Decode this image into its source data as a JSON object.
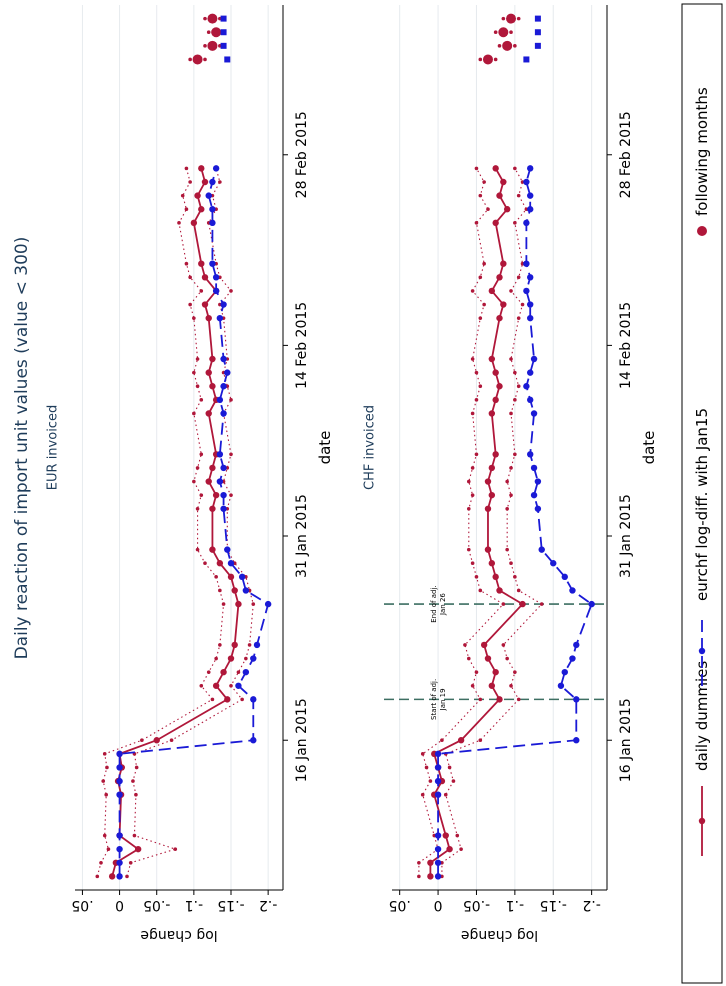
{
  "title": "Daily reaction of import unit values (value < 300)",
  "legend": "bottom",
  "chart_data": [
    {
      "type": "line",
      "subtitle": "EUR invoiced",
      "x_label": "date",
      "y_label": "log change",
      "grid": true,
      "xlim": [
        "2015-01-05",
        "2015-03-11"
      ],
      "xticks": [
        {
          "value": "2015-01-16",
          "label": "16 Jan 2015"
        },
        {
          "value": "2015-01-31",
          "label": "31 Jan 2015"
        },
        {
          "value": "2015-02-14",
          "label": "14 Feb 2015"
        },
        {
          "value": "2015-02-28",
          "label": "28 Feb 2015"
        }
      ],
      "ylim": [
        -0.22,
        0.06
      ],
      "yticks": [
        {
          "value": 0.05,
          "label": ".05"
        },
        0,
        {
          "value": -0.05,
          "label": "-.05"
        },
        {
          "value": -0.1,
          "label": "-.1"
        },
        {
          "value": -0.15,
          "label": "-.15"
        },
        {
          "value": -0.2,
          "label": "-.2"
        }
      ],
      "x": [
        "2015-01-06",
        "2015-01-07",
        "2015-01-08",
        "2015-01-09",
        "2015-01-12",
        "2015-01-13",
        "2015-01-14",
        "2015-01-15",
        "2015-01-16",
        "2015-01-19",
        "2015-01-20",
        "2015-01-21",
        "2015-01-22",
        "2015-01-23",
        "2015-01-26",
        "2015-01-27",
        "2015-01-28",
        "2015-01-29",
        "2015-01-30",
        "2015-02-02",
        "2015-02-03",
        "2015-02-04",
        "2015-02-05",
        "2015-02-06",
        "2015-02-09",
        "2015-02-10",
        "2015-02-11",
        "2015-02-12",
        "2015-02-13",
        "2015-02-16",
        "2015-02-17",
        "2015-02-18",
        "2015-02-19",
        "2015-02-20",
        "2015-02-23",
        "2015-02-24",
        "2015-02-25",
        "2015-02-26",
        "2015-02-27"
      ],
      "series": [
        {
          "name": "daily dummies",
          "color": "#b0173a",
          "style": "solid",
          "marker": "circle",
          "values": [
            0.01,
            0.005,
            -0.025,
            0.0,
            -0.002,
            0.002,
            -0.003,
            0.0,
            -0.05,
            -0.145,
            -0.13,
            -0.14,
            -0.15,
            -0.155,
            -0.16,
            -0.155,
            -0.15,
            -0.135,
            -0.125,
            -0.125,
            -0.13,
            -0.12,
            -0.125,
            -0.13,
            -0.12,
            -0.13,
            -0.125,
            -0.12,
            -0.125,
            -0.12,
            -0.115,
            -0.13,
            -0.115,
            -0.11,
            -0.1,
            -0.11,
            -0.105,
            -0.115,
            -0.11
          ]
        },
        {
          "color": "#b0173a",
          "style": "dotted",
          "marker": "small-circle",
          "values": [
            -0.01,
            -0.015,
            -0.075,
            -0.02,
            -0.022,
            -0.018,
            -0.023,
            -0.02,
            -0.07,
            -0.165,
            -0.15,
            -0.16,
            -0.17,
            -0.175,
            -0.18,
            -0.175,
            -0.17,
            -0.155,
            -0.145,
            -0.145,
            -0.15,
            -0.14,
            -0.145,
            -0.15,
            -0.14,
            -0.15,
            -0.145,
            -0.14,
            -0.145,
            -0.14,
            -0.135,
            -0.15,
            -0.135,
            -0.13,
            -0.12,
            -0.13,
            -0.125,
            -0.135,
            -0.13
          ]
        },
        {
          "color": "#b0173a",
          "style": "dotted",
          "marker": "small-circle",
          "values": [
            0.03,
            0.025,
            0.015,
            0.02,
            0.018,
            0.022,
            0.017,
            0.02,
            -0.03,
            -0.125,
            -0.11,
            -0.12,
            -0.13,
            -0.135,
            -0.14,
            -0.135,
            -0.13,
            -0.115,
            -0.105,
            -0.105,
            -0.11,
            -0.1,
            -0.105,
            -0.11,
            -0.1,
            -0.11,
            -0.105,
            -0.1,
            -0.105,
            -0.1,
            -0.095,
            -0.11,
            -0.095,
            -0.09,
            -0.08,
            -0.09,
            -0.085,
            -0.095,
            -0.09
          ]
        },
        {
          "name": "eurchf log-diff. with Jan15",
          "color": "#1a1ad6",
          "style": "dashed",
          "marker": "circle",
          "values": [
            0,
            0,
            0,
            0,
            0,
            0,
            0,
            0,
            -0.18,
            -0.18,
            -0.16,
            -0.17,
            -0.18,
            -0.185,
            -0.2,
            -0.17,
            -0.165,
            -0.15,
            -0.145,
            -0.14,
            -0.14,
            -0.135,
            -0.14,
            -0.135,
            -0.14,
            -0.135,
            -0.14,
            -0.145,
            -0.14,
            -0.135,
            -0.14,
            -0.13,
            -0.13,
            -0.125,
            -0.125,
            -0.125,
            -0.12,
            -0.125,
            -0.13
          ]
        },
        {
          "name": "following months",
          "color": "#b0173a",
          "style": "none",
          "marker": "big-circle",
          "x": [
            "2015-03-07",
            "2015-03-08",
            "2015-03-09",
            "2015-03-10"
          ],
          "values": [
            -0.105,
            -0.125,
            -0.13,
            -0.125
          ]
        },
        {
          "color": "#b0173a",
          "style": "none",
          "marker": "small-circle",
          "x": [
            "2015-03-07",
            "2015-03-08",
            "2015-03-09",
            "2015-03-10"
          ],
          "values": [
            -0.115,
            -0.135,
            -0.14,
            -0.135
          ]
        },
        {
          "color": "#b0173a",
          "style": "none",
          "marker": "small-circle",
          "x": [
            "2015-03-07",
            "2015-03-08",
            "2015-03-09",
            "2015-03-10"
          ],
          "values": [
            -0.095,
            -0.115,
            -0.12,
            -0.115
          ]
        },
        {
          "color": "#1a1ad6",
          "style": "none",
          "marker": "square",
          "x": [
            "2015-03-07",
            "2015-03-08",
            "2015-03-09",
            "2015-03-10"
          ],
          "values": [
            -0.145,
            -0.14,
            -0.14,
            -0.14
          ]
        }
      ]
    },
    {
      "type": "line",
      "subtitle": "CHF invoiced",
      "x_label": "date",
      "y_label": "log change",
      "grid": true,
      "xlim": [
        "2015-01-05",
        "2015-03-11"
      ],
      "xticks": [
        {
          "value": "2015-01-16",
          "label": "16 Jan 2015"
        },
        {
          "value": "2015-01-31",
          "label": "31 Jan 2015"
        },
        {
          "value": "2015-02-14",
          "label": "14 Feb 2015"
        },
        {
          "value": "2015-02-28",
          "label": "28 Feb 2015"
        }
      ],
      "ylim": [
        -0.22,
        0.06
      ],
      "yticks": [
        {
          "value": 0.05,
          "label": ".05"
        },
        0,
        {
          "value": -0.05,
          "label": "-.05"
        },
        {
          "value": -0.1,
          "label": "-.1"
        },
        {
          "value": -0.15,
          "label": "-.15"
        },
        {
          "value": -0.2,
          "label": "-.2"
        }
      ],
      "annotation_color": "#3d6f62",
      "annotations": [
        {
          "x": "2015-01-19",
          "lines": [
            "Start of adj.",
            "Jan 19"
          ]
        },
        {
          "x": "2015-01-26",
          "lines": [
            "End of adj.",
            "Jan 26"
          ]
        }
      ],
      "x": [
        "2015-01-06",
        "2015-01-07",
        "2015-01-08",
        "2015-01-09",
        "2015-01-12",
        "2015-01-13",
        "2015-01-14",
        "2015-01-15",
        "2015-01-16",
        "2015-01-19",
        "2015-01-20",
        "2015-01-21",
        "2015-01-22",
        "2015-01-23",
        "2015-01-26",
        "2015-01-27",
        "2015-01-28",
        "2015-01-29",
        "2015-01-30",
        "2015-02-02",
        "2015-02-03",
        "2015-02-04",
        "2015-02-05",
        "2015-02-06",
        "2015-02-09",
        "2015-02-10",
        "2015-02-11",
        "2015-02-12",
        "2015-02-13",
        "2015-02-16",
        "2015-02-17",
        "2015-02-18",
        "2015-02-19",
        "2015-02-20",
        "2015-02-23",
        "2015-02-24",
        "2015-02-25",
        "2015-02-26",
        "2015-02-27"
      ],
      "series": [
        {
          "color": "#b0173a",
          "style": "solid",
          "marker": "circle",
          "values": [
            0.01,
            0.01,
            -0.015,
            -0.01,
            0.005,
            -0.005,
            0.0,
            0.005,
            -0.03,
            -0.08,
            -0.07,
            -0.075,
            -0.065,
            -0.06,
            -0.11,
            -0.08,
            -0.075,
            -0.07,
            -0.065,
            -0.065,
            -0.07,
            -0.065,
            -0.07,
            -0.075,
            -0.07,
            -0.075,
            -0.08,
            -0.075,
            -0.07,
            -0.08,
            -0.085,
            -0.07,
            -0.08,
            -0.085,
            -0.075,
            -0.09,
            -0.08,
            -0.085,
            -0.075
          ]
        },
        {
          "color": "#b0173a",
          "style": "dotted",
          "marker": "small-circle",
          "values": [
            -0.005,
            -0.005,
            -0.03,
            -0.025,
            -0.01,
            -0.02,
            -0.015,
            -0.01,
            -0.055,
            -0.105,
            -0.095,
            -0.1,
            -0.09,
            -0.085,
            -0.135,
            -0.105,
            -0.1,
            -0.095,
            -0.09,
            -0.09,
            -0.095,
            -0.09,
            -0.095,
            -0.1,
            -0.095,
            -0.1,
            -0.105,
            -0.1,
            -0.095,
            -0.105,
            -0.11,
            -0.095,
            -0.105,
            -0.11,
            -0.1,
            -0.115,
            -0.105,
            -0.11,
            -0.1
          ]
        },
        {
          "color": "#b0173a",
          "style": "dotted",
          "marker": "small-circle",
          "values": [
            0.025,
            0.025,
            0.0,
            0.005,
            0.02,
            0.01,
            0.015,
            0.02,
            -0.005,
            -0.055,
            -0.045,
            -0.05,
            -0.04,
            -0.035,
            -0.085,
            -0.055,
            -0.05,
            -0.045,
            -0.04,
            -0.04,
            -0.045,
            -0.04,
            -0.045,
            -0.05,
            -0.045,
            -0.05,
            -0.055,
            -0.05,
            -0.045,
            -0.055,
            -0.06,
            -0.045,
            -0.055,
            -0.06,
            -0.05,
            -0.065,
            -0.055,
            -0.06,
            -0.05
          ]
        },
        {
          "color": "#1a1ad6",
          "style": "dashed",
          "marker": "circle",
          "values": [
            0,
            0,
            0,
            0,
            0,
            0,
            0,
            0,
            -0.18,
            -0.18,
            -0.16,
            -0.165,
            -0.175,
            -0.18,
            -0.2,
            -0.175,
            -0.165,
            -0.15,
            -0.135,
            -0.13,
            -0.125,
            -0.13,
            -0.125,
            -0.12,
            -0.125,
            -0.12,
            -0.115,
            -0.12,
            -0.125,
            -0.12,
            -0.12,
            -0.115,
            -0.12,
            -0.115,
            -0.115,
            -0.12,
            -0.12,
            -0.115,
            -0.12
          ]
        },
        {
          "color": "#b0173a",
          "style": "none",
          "marker": "big-circle",
          "x": [
            "2015-03-07",
            "2015-03-08",
            "2015-03-09",
            "2015-03-10"
          ],
          "values": [
            -0.065,
            -0.09,
            -0.085,
            -0.095
          ]
        },
        {
          "color": "#b0173a",
          "style": "none",
          "marker": "small-circle",
          "x": [
            "2015-03-07",
            "2015-03-08",
            "2015-03-09",
            "2015-03-10"
          ],
          "values": [
            -0.075,
            -0.1,
            -0.095,
            -0.105
          ]
        },
        {
          "color": "#b0173a",
          "style": "none",
          "marker": "small-circle",
          "x": [
            "2015-03-07",
            "2015-03-08",
            "2015-03-09",
            "2015-03-10"
          ],
          "values": [
            -0.055,
            -0.08,
            -0.075,
            -0.085
          ]
        },
        {
          "color": "#1a1ad6",
          "style": "none",
          "marker": "square",
          "x": [
            "2015-03-07",
            "2015-03-08",
            "2015-03-09",
            "2015-03-10"
          ],
          "values": [
            -0.115,
            -0.13,
            -0.13,
            -0.13
          ]
        }
      ]
    }
  ]
}
